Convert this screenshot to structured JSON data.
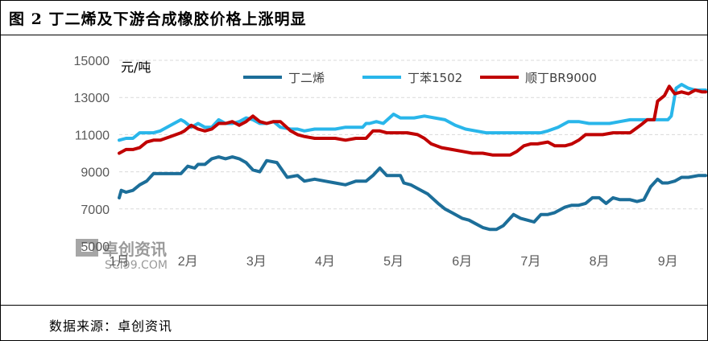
{
  "header": {
    "title": "图 2 丁二烯及下游合成橡胶价格上涨明显"
  },
  "footer": {
    "source": "数据来源：卓创资讯"
  },
  "watermark": {
    "name": "卓创资讯",
    "site": "SCI99.COM"
  },
  "colors": {
    "butadiene": "#1c6e99",
    "styrene_butadiene": "#29b6ea",
    "br9000": "#c00000",
    "grid": "#d9d9d9"
  },
  "chart_data": {
    "type": "line",
    "title": "",
    "ylabel": "元/吨",
    "xlabel": "",
    "ylim": [
      5000,
      15000
    ],
    "yticks": [
      5000,
      7000,
      9000,
      11000,
      13000,
      15000
    ],
    "x_range": [
      0,
      8.55
    ],
    "grid": "horizontal dashed",
    "legend_position": "top",
    "categories": [
      "1月",
      "2月",
      "3月",
      "4月",
      "5月",
      "6月",
      "7月",
      "8月",
      "9月"
    ],
    "category_positions": [
      0,
      1,
      2,
      3,
      4,
      5,
      6,
      7,
      8
    ],
    "series": [
      {
        "name": "丁二烯",
        "x": [
          0,
          0.03,
          0.1,
          0.2,
          0.3,
          0.4,
          0.5,
          0.6,
          0.75,
          0.9,
          1.0,
          1.1,
          1.15,
          1.25,
          1.35,
          1.45,
          1.55,
          1.65,
          1.75,
          1.85,
          1.95,
          2.05,
          2.15,
          2.3,
          2.45,
          2.6,
          2.7,
          2.85,
          3.0,
          3.15,
          3.3,
          3.45,
          3.6,
          3.7,
          3.8,
          3.9,
          4.0,
          4.1,
          4.15,
          4.25,
          4.35,
          4.5,
          4.65,
          4.75,
          4.85,
          5.0,
          5.1,
          5.2,
          5.3,
          5.4,
          5.5,
          5.6,
          5.75,
          5.85,
          5.95,
          6.05,
          6.15,
          6.25,
          6.35,
          6.5,
          6.6,
          6.7,
          6.8,
          6.9,
          7.0,
          7.1,
          7.2,
          7.3,
          7.45,
          7.55,
          7.65,
          7.75,
          7.85,
          7.92,
          8.0,
          8.1,
          8.2,
          8.3,
          8.45,
          8.55
        ],
        "values": [
          7600,
          8000,
          7900,
          8000,
          8300,
          8500,
          8900,
          8900,
          8900,
          8900,
          9300,
          9200,
          9400,
          9400,
          9700,
          9800,
          9700,
          9800,
          9700,
          9500,
          9100,
          9000,
          9600,
          9500,
          8700,
          8800,
          8500,
          8600,
          8500,
          8400,
          8300,
          8500,
          8500,
          8800,
          9200,
          8800,
          8800,
          8800,
          8400,
          8300,
          8100,
          7800,
          7300,
          7000,
          6800,
          6500,
          6400,
          6200,
          6000,
          5900,
          5900,
          6100,
          6700,
          6500,
          6400,
          6300,
          6700,
          6700,
          6800,
          7100,
          7200,
          7200,
          7300,
          7600,
          7600,
          7300,
          7600,
          7500,
          7500,
          7400,
          7500,
          8200,
          8600,
          8400,
          8400,
          8500,
          8700,
          8700,
          8800,
          8800
        ]
      },
      {
        "name": "丁苯1502",
        "x": [
          0,
          0.1,
          0.2,
          0.3,
          0.4,
          0.5,
          0.6,
          0.75,
          0.9,
          0.95,
          1.05,
          1.15,
          1.25,
          1.35,
          1.45,
          1.55,
          1.65,
          1.75,
          1.85,
          1.95,
          2.05,
          2.15,
          2.25,
          2.35,
          2.5,
          2.6,
          2.7,
          2.85,
          3.0,
          3.15,
          3.3,
          3.45,
          3.55,
          3.6,
          3.65,
          3.75,
          3.85,
          4.0,
          4.1,
          4.2,
          4.3,
          4.45,
          4.6,
          4.75,
          4.9,
          5.05,
          5.2,
          5.35,
          5.5,
          5.65,
          5.75,
          5.85,
          5.95,
          6.05,
          6.15,
          6.25,
          6.4,
          6.55,
          6.7,
          6.85,
          7.0,
          7.15,
          7.3,
          7.45,
          7.6,
          7.75,
          7.85,
          7.95,
          8.0,
          8.05,
          8.12,
          8.2,
          8.3,
          8.4,
          8.55
        ],
        "values": [
          10700,
          10800,
          10800,
          11100,
          11100,
          11100,
          11200,
          11500,
          11800,
          11700,
          11400,
          11600,
          11400,
          11400,
          11800,
          11600,
          11600,
          11700,
          11900,
          11800,
          11600,
          11600,
          11700,
          11400,
          11300,
          11300,
          11200,
          11300,
          11300,
          11300,
          11400,
          11400,
          11400,
          11600,
          11600,
          11700,
          11600,
          12100,
          11900,
          11900,
          11900,
          12000,
          11900,
          11800,
          11500,
          11300,
          11200,
          11100,
          11100,
          11100,
          11100,
          11100,
          11100,
          11100,
          11100,
          11200,
          11400,
          11700,
          11700,
          11600,
          11600,
          11600,
          11700,
          11800,
          11800,
          11800,
          11800,
          11800,
          11800,
          12000,
          13500,
          13700,
          13500,
          13400,
          13400
        ]
      },
      {
        "name": "顺丁BR9000",
        "x": [
          0,
          0.1,
          0.2,
          0.3,
          0.4,
          0.5,
          0.6,
          0.75,
          0.9,
          0.95,
          1.05,
          1.15,
          1.25,
          1.35,
          1.45,
          1.55,
          1.65,
          1.75,
          1.85,
          1.95,
          2.05,
          2.15,
          2.25,
          2.35,
          2.5,
          2.6,
          2.7,
          2.85,
          3.0,
          3.15,
          3.3,
          3.45,
          3.6,
          3.7,
          3.8,
          3.9,
          4.0,
          4.1,
          4.2,
          4.35,
          4.45,
          4.55,
          4.7,
          4.85,
          5.0,
          5.15,
          5.3,
          5.45,
          5.6,
          5.7,
          5.8,
          5.9,
          6.0,
          6.1,
          6.25,
          6.35,
          6.5,
          6.6,
          6.7,
          6.8,
          6.9,
          7.05,
          7.2,
          7.3,
          7.45,
          7.6,
          7.7,
          7.8,
          7.85,
          7.95,
          8.02,
          8.1,
          8.2,
          8.3,
          8.4,
          8.5,
          8.55
        ],
        "values": [
          10000,
          10200,
          10200,
          10300,
          10600,
          10700,
          10700,
          10900,
          11100,
          11200,
          11500,
          11300,
          11200,
          11300,
          11600,
          11600,
          11700,
          11500,
          11700,
          12000,
          11700,
          11600,
          11700,
          11700,
          11200,
          11000,
          10900,
          10800,
          10800,
          10800,
          10700,
          10800,
          10800,
          11200,
          11200,
          11100,
          11100,
          11100,
          11100,
          11000,
          10800,
          10500,
          10300,
          10200,
          10100,
          10000,
          10000,
          9900,
          9900,
          9900,
          10100,
          10400,
          10500,
          10500,
          10600,
          10400,
          10400,
          10500,
          10700,
          11000,
          11000,
          11000,
          11100,
          11100,
          11100,
          11500,
          11800,
          11800,
          12800,
          13100,
          13600,
          13200,
          13300,
          13200,
          13400,
          13300,
          13300
        ]
      }
    ]
  }
}
